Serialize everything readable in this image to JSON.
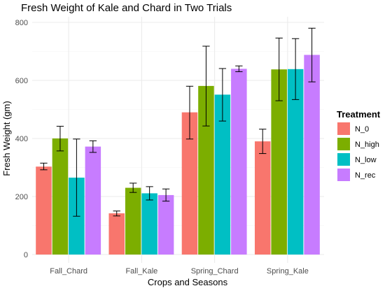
{
  "chart_data": {
    "type": "bar",
    "title": "Fresh Weight of Kale and Chard in Two Trials",
    "xlabel": "Crops and Seasons",
    "ylabel": "Fresh Weight (gm)",
    "ylim": [
      0,
      800
    ],
    "yticks": [
      0,
      200,
      400,
      600,
      800
    ],
    "categories": [
      "Fall_Chard",
      "Fall_Kale",
      "Spring_Chard",
      "Spring_Kale"
    ],
    "legend_title": "Treatment",
    "legend_position": "right",
    "grid": true,
    "series": [
      {
        "name": "N_0",
        "color": "#F8766D",
        "values": [
          303,
          142,
          490,
          390
        ],
        "err_low": [
          292,
          133,
          398,
          348
        ],
        "err_high": [
          315,
          150,
          580,
          432
        ]
      },
      {
        "name": "N_high",
        "color": "#7CAE00",
        "values": [
          400,
          230,
          581,
          638
        ],
        "err_low": [
          357,
          214,
          443,
          530
        ],
        "err_high": [
          442,
          246,
          718,
          746
        ]
      },
      {
        "name": "N_low",
        "color": "#00BFC4",
        "values": [
          265,
          211,
          551,
          639
        ],
        "err_low": [
          132,
          188,
          460,
          534
        ],
        "err_high": [
          398,
          234,
          641,
          744
        ]
      },
      {
        "name": "N_rec",
        "color": "#C77CFF",
        "values": [
          372,
          205,
          640,
          688
        ],
        "err_low": [
          352,
          184,
          630,
          595
        ],
        "err_high": [
          392,
          226,
          650,
          780
        ]
      }
    ]
  }
}
